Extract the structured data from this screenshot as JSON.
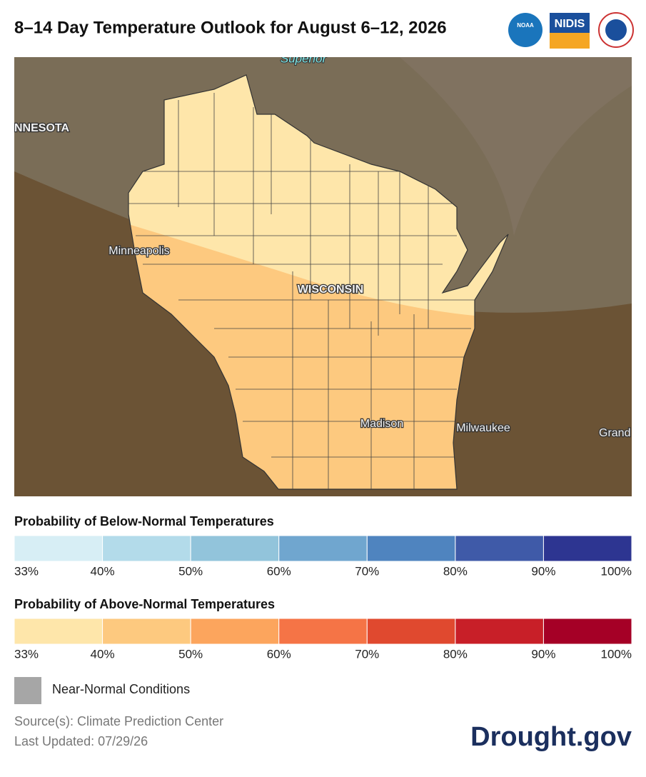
{
  "header": {
    "title": "8–14 Day Temperature Outlook for August 6–12, 2026",
    "logos": [
      "NOAA",
      "NIDIS"
    ]
  },
  "map": {
    "labels": [
      "Superior",
      "NNESOTA",
      "Minneapolis",
      "WISCONSIN",
      "Madison",
      "Milwaukee",
      "Grand"
    ]
  },
  "legend_below": {
    "title": "Probability of Below-Normal Temperatures",
    "ticks": [
      "33%",
      "40%",
      "50%",
      "60%",
      "70%",
      "80%",
      "90%",
      "100%"
    ]
  },
  "legend_above": {
    "title": "Probability of Above-Normal Temperatures",
    "ticks": [
      "33%",
      "40%",
      "50%",
      "60%",
      "70%",
      "80%",
      "90%",
      "100%"
    ]
  },
  "legend_near": {
    "label": "Near-Normal Conditions"
  },
  "footer": {
    "source": "Source(s): Climate Prediction Center",
    "updated": "Last Updated: 07/29/26",
    "brand": "Drought.gov"
  }
}
